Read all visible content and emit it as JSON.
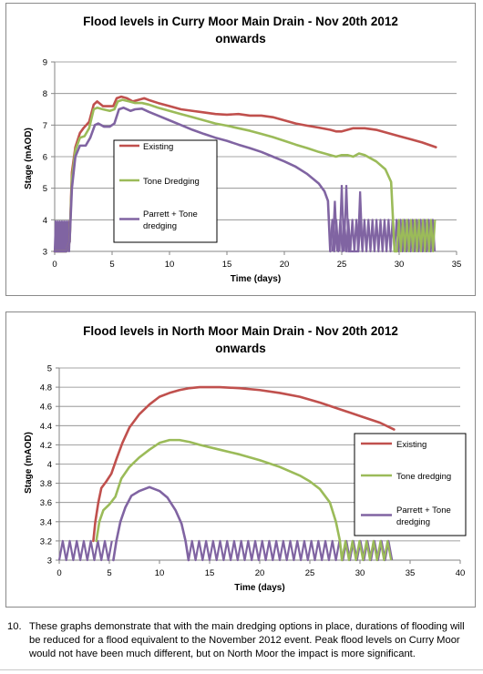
{
  "charts": [
    {
      "title": "Flood levels in Curry Moor Main Drain - Nov 20th 2012",
      "subtitle": "onwards",
      "chart_data": {
        "type": "line",
        "title": "Flood levels in Curry Moor Main Drain - Nov 20th 2012 onwards",
        "xlabel": "Time (days)",
        "ylabel": "Stage (mAOD)",
        "xlim": [
          0,
          35
        ],
        "ylim": [
          3,
          9
        ],
        "xticks": [
          0,
          5,
          10,
          15,
          20,
          25,
          30,
          35
        ],
        "yticks": [
          3,
          4,
          5,
          6,
          7,
          8,
          9
        ],
        "grid": "horizontal",
        "legend": "inside-center",
        "series": [
          {
            "name": "Existing",
            "color": "#c0504d",
            "points": [
              [
                0,
                3
              ],
              [
                0.5,
                3
              ],
              [
                1.0,
                3
              ],
              [
                1.3,
                3.3
              ],
              [
                1.5,
                5.5
              ],
              [
                1.8,
                6.3
              ],
              [
                2.2,
                6.75
              ],
              [
                2.5,
                6.9
              ],
              [
                3.0,
                7.1
              ],
              [
                3.4,
                7.65
              ],
              [
                3.7,
                7.75
              ],
              [
                4.2,
                7.6
              ],
              [
                4.7,
                7.6
              ],
              [
                5.1,
                7.6
              ],
              [
                5.4,
                7.85
              ],
              [
                5.8,
                7.9
              ],
              [
                6.3,
                7.85
              ],
              [
                6.8,
                7.75
              ],
              [
                7.3,
                7.8
              ],
              [
                7.8,
                7.85
              ],
              [
                8.3,
                7.78
              ],
              [
                9,
                7.7
              ],
              [
                10,
                7.6
              ],
              [
                11,
                7.5
              ],
              [
                12,
                7.45
              ],
              [
                13,
                7.4
              ],
              [
                14,
                7.35
              ],
              [
                15,
                7.33
              ],
              [
                16,
                7.35
              ],
              [
                17,
                7.3
              ],
              [
                18,
                7.3
              ],
              [
                19,
                7.25
              ],
              [
                20,
                7.15
              ],
              [
                21,
                7.05
              ],
              [
                22,
                6.98
              ],
              [
                23,
                6.92
              ],
              [
                24,
                6.85
              ],
              [
                24.5,
                6.8
              ],
              [
                25,
                6.8
              ],
              [
                25.5,
                6.85
              ],
              [
                26,
                6.9
              ],
              [
                27,
                6.9
              ],
              [
                28,
                6.85
              ],
              [
                29,
                6.75
              ],
              [
                30,
                6.65
              ],
              [
                31,
                6.55
              ],
              [
                32,
                6.45
              ],
              [
                33.2,
                6.3
              ]
            ]
          },
          {
            "name": "Tone Dredging",
            "color": "#9bbb59",
            "points": [
              [
                0,
                3
              ],
              [
                1.0,
                3
              ],
              [
                1.3,
                3.3
              ],
              [
                1.5,
                5.3
              ],
              [
                1.8,
                6.2
              ],
              [
                2.2,
                6.6
              ],
              [
                2.6,
                6.65
              ],
              [
                3.0,
                6.9
              ],
              [
                3.4,
                7.5
              ],
              [
                3.7,
                7.55
              ],
              [
                4.2,
                7.5
              ],
              [
                4.8,
                7.45
              ],
              [
                5.2,
                7.5
              ],
              [
                5.5,
                7.75
              ],
              [
                5.9,
                7.8
              ],
              [
                6.5,
                7.75
              ],
              [
                7,
                7.7
              ],
              [
                7.6,
                7.7
              ],
              [
                8.2,
                7.65
              ],
              [
                9,
                7.55
              ],
              [
                10,
                7.45
              ],
              [
                11,
                7.35
              ],
              [
                12,
                7.25
              ],
              [
                13,
                7.15
              ],
              [
                14,
                7.05
              ],
              [
                15,
                6.98
              ],
              [
                16,
                6.9
              ],
              [
                17,
                6.82
              ],
              [
                18,
                6.72
              ],
              [
                19,
                6.62
              ],
              [
                20,
                6.5
              ],
              [
                21,
                6.38
              ],
              [
                22,
                6.27
              ],
              [
                23,
                6.15
              ],
              [
                24,
                6.05
              ],
              [
                24.5,
                6.0
              ],
              [
                25,
                6.05
              ],
              [
                25.5,
                6.05
              ],
              [
                26,
                6.0
              ],
              [
                26.5,
                6.1
              ],
              [
                27,
                6.05
              ],
              [
                28,
                5.85
              ],
              [
                28.8,
                5.6
              ],
              [
                29.3,
                5.2
              ],
              [
                29.6,
                3.0
              ],
              [
                29.8,
                3.0
              ]
            ]
          },
          {
            "name": "Parrett + Tone dredging",
            "color": "#8064a2",
            "points": [
              [
                0,
                3
              ],
              [
                1.0,
                3
              ],
              [
                1.3,
                3.3
              ],
              [
                1.5,
                5.0
              ],
              [
                1.8,
                6.0
              ],
              [
                2.2,
                6.35
              ],
              [
                2.7,
                6.35
              ],
              [
                3.1,
                6.6
              ],
              [
                3.5,
                7.0
              ],
              [
                3.8,
                7.05
              ],
              [
                4.3,
                6.95
              ],
              [
                4.8,
                6.95
              ],
              [
                5.2,
                7.05
              ],
              [
                5.6,
                7.5
              ],
              [
                6.0,
                7.55
              ],
              [
                6.6,
                7.45
              ],
              [
                7.0,
                7.5
              ],
              [
                7.6,
                7.52
              ],
              [
                8.2,
                7.42
              ],
              [
                9,
                7.3
              ],
              [
                10,
                7.15
              ],
              [
                11,
                7.0
              ],
              [
                12,
                6.85
              ],
              [
                13,
                6.72
              ],
              [
                14,
                6.6
              ],
              [
                15,
                6.5
              ],
              [
                16,
                6.38
              ],
              [
                17,
                6.27
              ],
              [
                18,
                6.15
              ],
              [
                19,
                6.0
              ],
              [
                20,
                5.85
              ],
              [
                21,
                5.68
              ],
              [
                22,
                5.45
              ],
              [
                23,
                5.15
              ],
              [
                23.5,
                4.9
              ],
              [
                23.8,
                4.6
              ],
              [
                24.0,
                3.0
              ]
            ]
          }
        ],
        "pump_cycles": [
          {
            "color": "#8064a2",
            "x_start": 0,
            "x_end": 1.4,
            "period": 0.18,
            "low": 3,
            "high": 3.95
          },
          {
            "color": "#8064a2",
            "x_start": 24.0,
            "x_end": 33.2,
            "period": 0.35,
            "low": 3,
            "high": 4.0
          },
          {
            "color": "#9bbb59",
            "x_start": 29.8,
            "x_end": 33.2,
            "period": 0.35,
            "low": 3,
            "high": 4.0
          }
        ],
        "spikes": [
          {
            "color": "#8064a2",
            "points": [
              [
                24.8,
                3
              ],
              [
                25.0,
                5.1
              ],
              [
                25.2,
                3
              ],
              [
                25.4,
                5.1
              ],
              [
                25.6,
                3
              ],
              [
                26.4,
                3
              ],
              [
                26.6,
                4.9
              ],
              [
                26.8,
                3
              ]
            ]
          },
          {
            "color": "#8064a2",
            "points": [
              [
                24.2,
                3
              ],
              [
                24.4,
                4.6
              ],
              [
                24.6,
                3
              ]
            ]
          }
        ]
      }
    },
    {
      "title": "Flood levels in North Moor Main Drain - Nov 20th 2012",
      "subtitle": "onwards",
      "chart_data": {
        "type": "line",
        "title": "Flood levels in North Moor Main Drain - Nov 20th 2012 onwards",
        "xlabel": "Time (days)",
        "ylabel": "Stage (mAOD)",
        "xlim": [
          0,
          40
        ],
        "ylim": [
          3,
          5
        ],
        "xticks": [
          0,
          5,
          10,
          15,
          20,
          25,
          30,
          35,
          40
        ],
        "yticks": [
          3,
          3.2,
          3.4,
          3.6,
          3.8,
          4,
          4.2,
          4.4,
          4.6,
          4.8,
          5
        ],
        "ytick_labels": [
          "3",
          "3.2",
          "3.4",
          "3.6",
          "3.8",
          "4",
          "4.2",
          "4.4",
          "4.6",
          "4.8",
          "5"
        ],
        "grid": "horizontal",
        "legend": "right",
        "series": [
          {
            "name": "Existing",
            "color": "#c0504d",
            "points": [
              [
                3.4,
                3.2
              ],
              [
                3.6,
                3.4
              ],
              [
                3.9,
                3.6
              ],
              [
                4.2,
                3.75
              ],
              [
                4.7,
                3.82
              ],
              [
                5.2,
                3.9
              ],
              [
                5.7,
                4.05
              ],
              [
                6.3,
                4.22
              ],
              [
                7,
                4.38
              ],
              [
                8,
                4.52
              ],
              [
                9,
                4.62
              ],
              [
                10,
                4.7
              ],
              [
                11,
                4.74
              ],
              [
                12,
                4.77
              ],
              [
                13,
                4.79
              ],
              [
                14,
                4.8
              ],
              [
                16,
                4.8
              ],
              [
                18,
                4.79
              ],
              [
                20,
                4.77
              ],
              [
                22,
                4.74
              ],
              [
                24,
                4.7
              ],
              [
                26,
                4.64
              ],
              [
                28,
                4.57
              ],
              [
                30,
                4.5
              ],
              [
                32,
                4.43
              ],
              [
                33.4,
                4.36
              ]
            ]
          },
          {
            "name": "Tone dredging",
            "color": "#9bbb59",
            "points": [
              [
                3.7,
                3.2
              ],
              [
                4.0,
                3.4
              ],
              [
                4.4,
                3.52
              ],
              [
                5.0,
                3.58
              ],
              [
                5.6,
                3.66
              ],
              [
                6.2,
                3.85
              ],
              [
                7,
                3.97
              ],
              [
                8,
                4.07
              ],
              [
                9,
                4.15
              ],
              [
                10,
                4.22
              ],
              [
                11,
                4.25
              ],
              [
                12,
                4.25
              ],
              [
                13,
                4.23
              ],
              [
                14,
                4.2
              ],
              [
                16,
                4.15
              ],
              [
                18,
                4.1
              ],
              [
                20,
                4.04
              ],
              [
                22,
                3.97
              ],
              [
                24,
                3.88
              ],
              [
                25,
                3.82
              ],
              [
                26,
                3.74
              ],
              [
                27,
                3.6
              ],
              [
                27.6,
                3.4
              ],
              [
                28.0,
                3.2
              ],
              [
                28.2,
                3.0
              ]
            ]
          },
          {
            "name": "Parrett + Tone dredging",
            "color": "#8064a2",
            "points": [
              [
                5.4,
                3.0
              ],
              [
                5.7,
                3.2
              ],
              [
                6.1,
                3.4
              ],
              [
                6.6,
                3.55
              ],
              [
                7.2,
                3.67
              ],
              [
                8.0,
                3.72
              ],
              [
                9.0,
                3.76
              ],
              [
                10.0,
                3.72
              ],
              [
                10.8,
                3.65
              ],
              [
                11.6,
                3.52
              ],
              [
                12.2,
                3.38
              ],
              [
                12.6,
                3.2
              ],
              [
                12.9,
                3.0
              ]
            ]
          }
        ],
        "pump_cycles": [
          {
            "color": "#8064a2",
            "x_start": 0,
            "x_end": 5.4,
            "period": 0.7,
            "low": 3,
            "high": 3.2
          },
          {
            "color": "#8064a2",
            "x_start": 12.9,
            "x_end": 33.4,
            "period": 0.7,
            "low": 3,
            "high": 3.2
          },
          {
            "color": "#9bbb59",
            "x_start": 28.2,
            "x_end": 33.4,
            "period": 0.7,
            "low": 3,
            "high": 3.2
          }
        ],
        "spikes": []
      }
    }
  ],
  "footnote": {
    "number": "10.",
    "text": "These graphs demonstrate that with the main dredging options in place, durations of flooding will be reduced for a flood equivalent to the November 2012 event. Peak flood levels on Curry Moor would not have been much different, but on North Moor the impact is more significant."
  }
}
